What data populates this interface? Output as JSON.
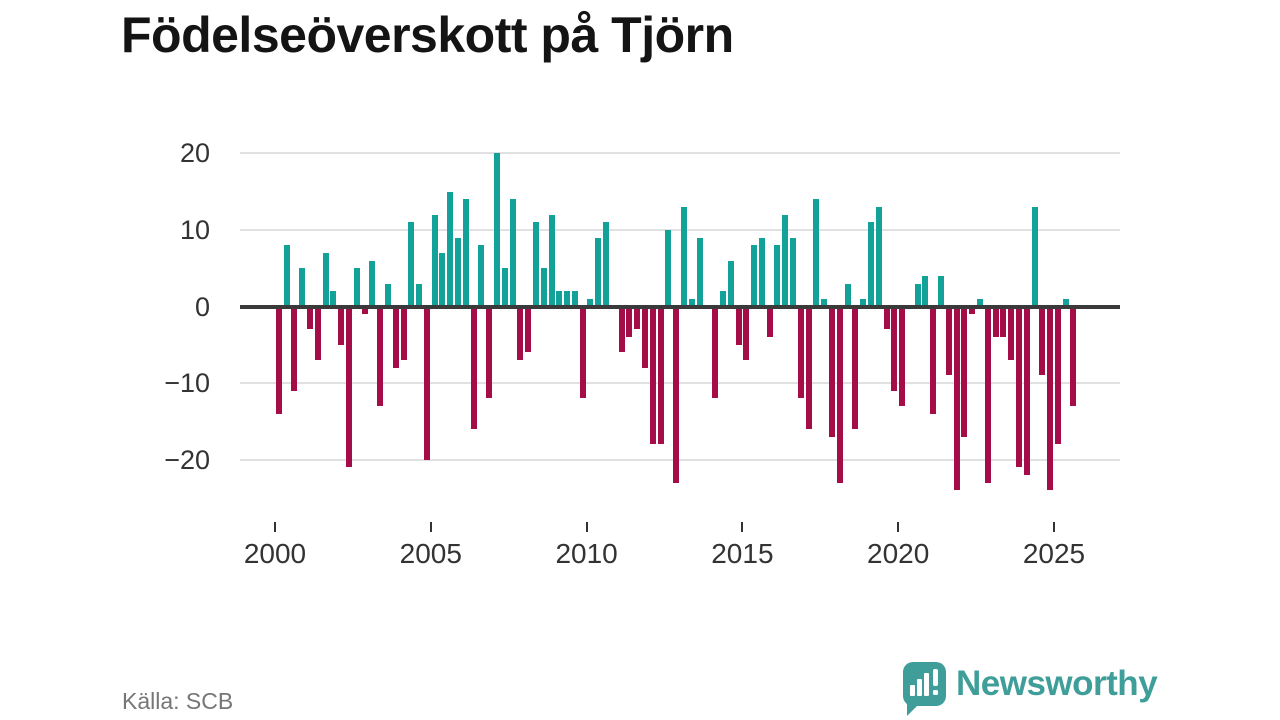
{
  "title": "Födelseöverskott på Tjörn",
  "source": "Källa: SCB",
  "logo": {
    "text": "Newsworthy"
  },
  "colors": {
    "positive": "#13a29a",
    "negative": "#a50d49",
    "axis": "#3a3a3a",
    "grid": "#e1e1e1",
    "logo": "#3f9e99"
  },
  "chart_data": {
    "type": "bar",
    "title": "Födelseöverskott på Tjörn",
    "frequency": "quarterly",
    "start_period": "2000Q1",
    "end_period": "2025Q3",
    "x_tick_labels": [
      "2000",
      "2005",
      "2010",
      "2015",
      "2020",
      "2025"
    ],
    "x_tick_years": [
      2000,
      2005,
      2010,
      2015,
      2020,
      2025
    ],
    "y_tick_values": [
      20,
      10,
      0,
      -10,
      -20
    ],
    "y_tick_labels": [
      "20",
      "10",
      "0",
      "−10",
      "−20"
    ],
    "ylim": [
      -26,
      22
    ],
    "grid": true,
    "legend": false,
    "values": [
      -14,
      8,
      -11,
      5,
      -3,
      -7,
      7,
      2,
      -5,
      -21,
      5,
      -1,
      6,
      -13,
      3,
      -8,
      -7,
      11,
      3,
      -20,
      12,
      7,
      15,
      9,
      14,
      -16,
      8,
      -12,
      20,
      5,
      14,
      -7,
      -6,
      11,
      5,
      12,
      2,
      2,
      2,
      -12,
      1,
      9,
      11,
      0,
      -6,
      -4,
      -3,
      -8,
      -18,
      -18,
      10,
      -23,
      13,
      1,
      9,
      0,
      -12,
      2,
      6,
      -5,
      -7,
      8,
      9,
      -4,
      8,
      12,
      9,
      -12,
      -16,
      14,
      1,
      -17,
      -23,
      3,
      -16,
      1,
      11,
      13,
      -3,
      -11,
      -13,
      0,
      3,
      4,
      -14,
      4,
      -9,
      -24,
      -17,
      -1,
      1,
      -23,
      -4,
      -4,
      -7,
      -21,
      -22,
      13,
      -9,
      -24,
      -18,
      1,
      -13
    ]
  }
}
